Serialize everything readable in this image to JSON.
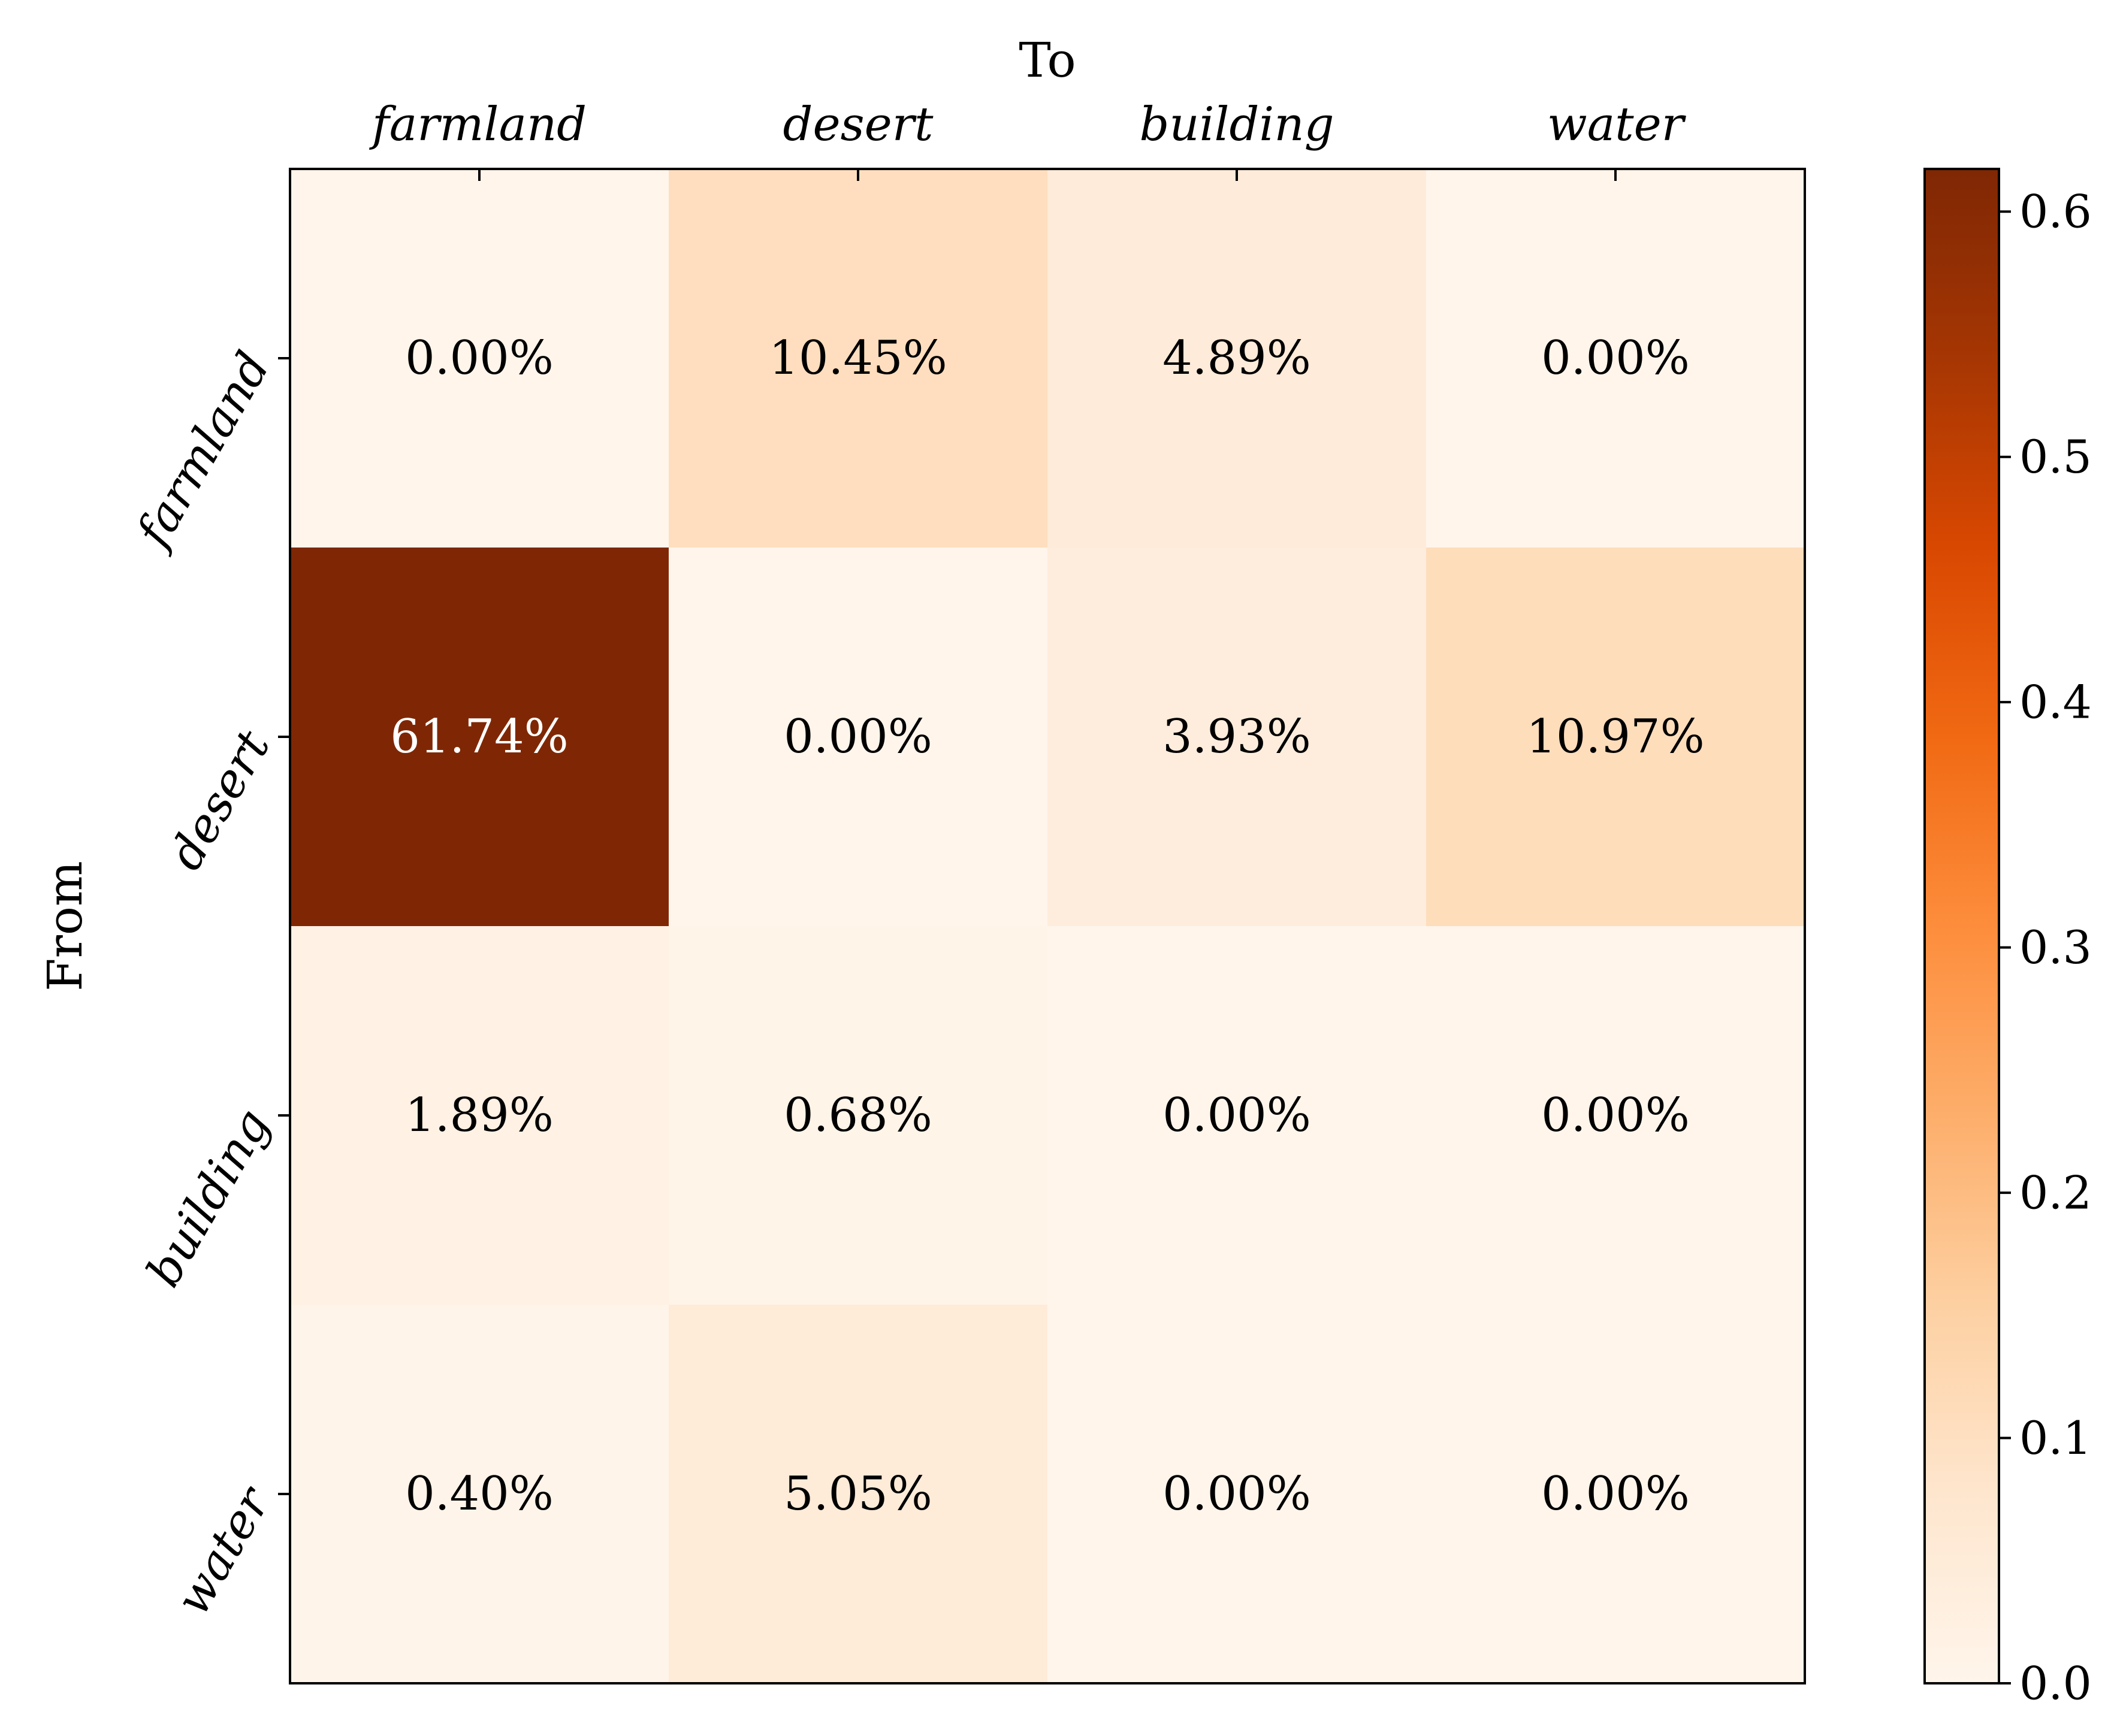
{
  "chart_data": {
    "type": "heatmap",
    "title": "",
    "xlabel": "To",
    "ylabel": "From",
    "x_categories": [
      "farmland",
      "desert",
      "building",
      "water"
    ],
    "y_categories": [
      "farmland",
      "desert",
      "building",
      "water"
    ],
    "values": [
      [
        0.0,
        0.1045,
        0.0489,
        0.0
      ],
      [
        0.6174,
        0.0,
        0.0393,
        0.1097
      ],
      [
        0.0189,
        0.0068,
        0.0,
        0.0
      ],
      [
        0.004,
        0.0505,
        0.0,
        0.0
      ]
    ],
    "cell_labels": [
      [
        "0.00%",
        "10.45%",
        "4.89%",
        "0.00%"
      ],
      [
        "61.74%",
        "0.00%",
        "3.93%",
        "10.97%"
      ],
      [
        "1.89%",
        "0.68%",
        "0.00%",
        "0.00%"
      ],
      [
        "0.40%",
        "5.05%",
        "0.00%",
        "0.00%"
      ]
    ],
    "colormap": "Oranges",
    "color_range": [
      0.0,
      0.6174
    ],
    "colorbar_ticks": [
      0.0,
      0.1,
      0.2,
      0.3,
      0.4,
      0.5,
      0.6
    ],
    "colorbar_tick_labels": [
      "0.0",
      "0.1",
      "0.2",
      "0.3",
      "0.4",
      "0.5",
      "0.6"
    ],
    "x_axis_position": "top",
    "grid": false
  }
}
